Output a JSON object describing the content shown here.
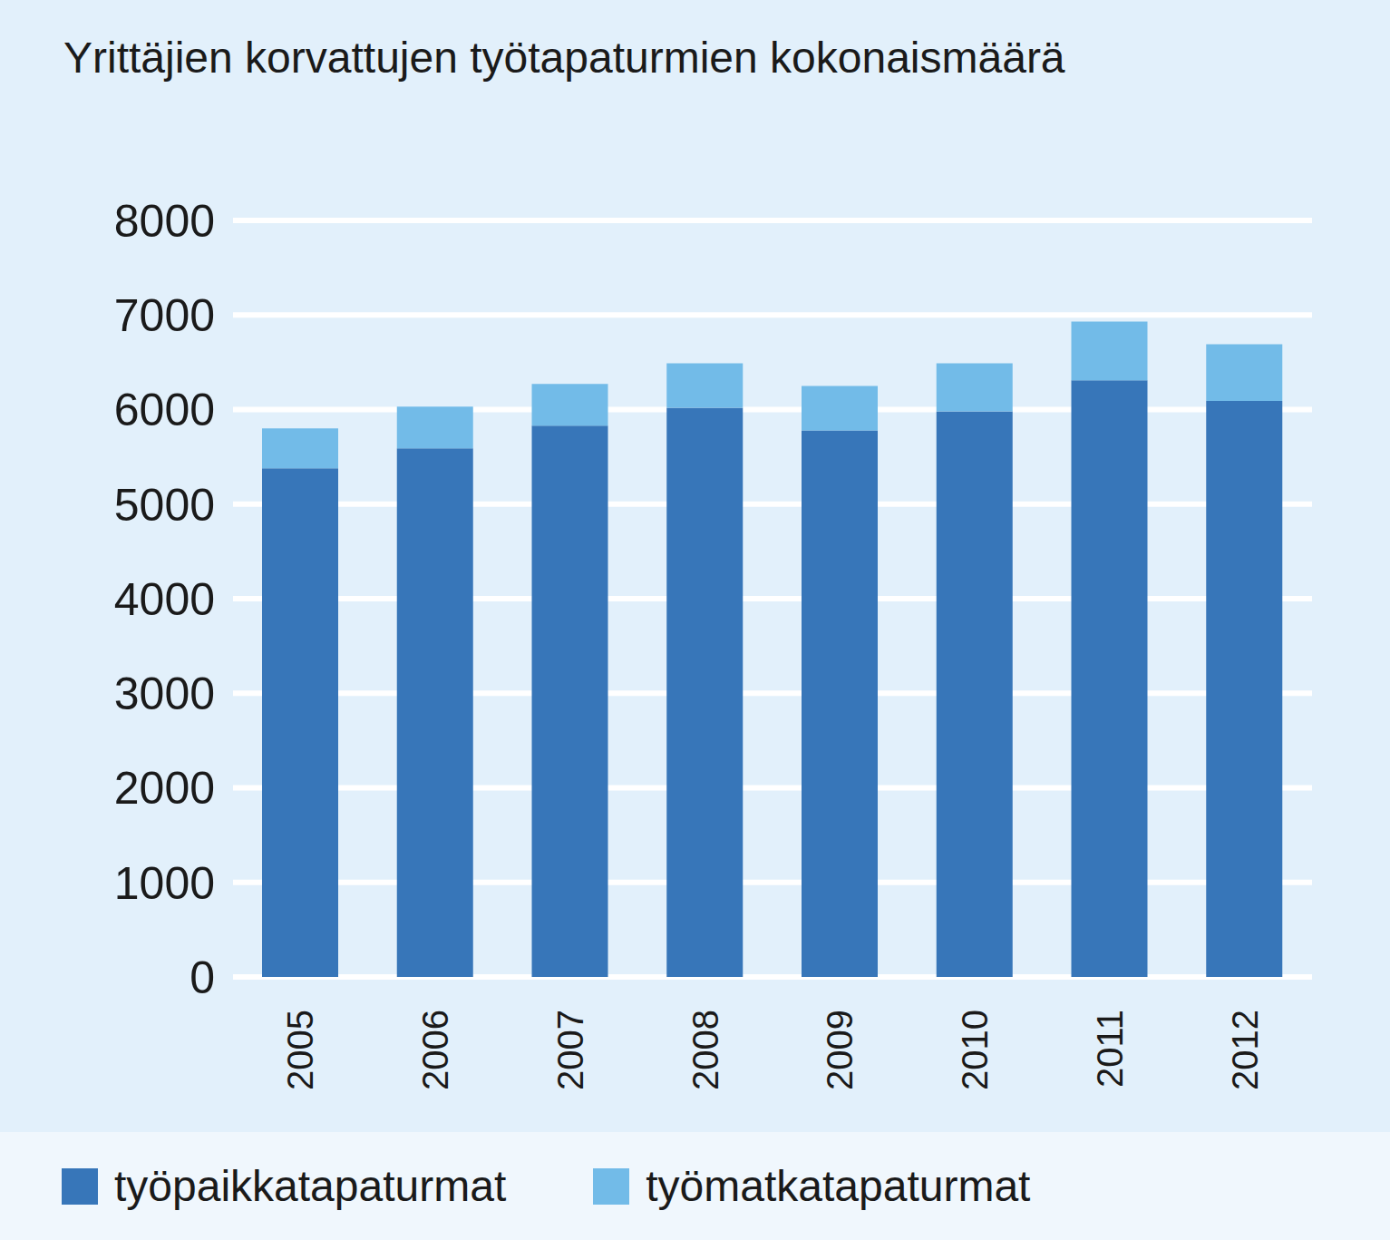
{
  "chart_data": {
    "type": "bar",
    "title": "Yrittäjien korvattujen työtapaturmien kokonaismäärä",
    "categories": [
      "2005",
      "2006",
      "2007",
      "2008",
      "2009",
      "2010",
      "2011",
      "2012"
    ],
    "series": [
      {
        "name": "työpaikkatapaturmat",
        "color": "#3776b9",
        "values": [
          5380,
          5590,
          5830,
          6020,
          5780,
          5980,
          6310,
          6090
        ]
      },
      {
        "name": "työmatkatapaturmat",
        "color": "#72bbe8",
        "values": [
          420,
          440,
          440,
          470,
          470,
          510,
          620,
          600
        ]
      }
    ],
    "ylim": [
      0,
      8000
    ],
    "yticks": [
      0,
      1000,
      2000,
      3000,
      4000,
      5000,
      6000,
      7000,
      8000
    ],
    "grid": true,
    "stacked": true,
    "legend": "bottom"
  }
}
